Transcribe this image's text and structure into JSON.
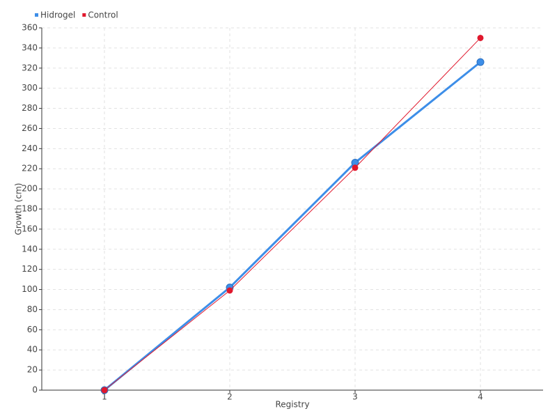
{
  "chart_data": {
    "type": "line",
    "x_label": "Registry",
    "y_label": "Growth (cm)",
    "categories": [
      "1",
      "2",
      "3",
      "4"
    ],
    "series": [
      {
        "name": "Hidrogel",
        "color": "#3d8ee8",
        "values": [
          0,
          102,
          226,
          326
        ]
      },
      {
        "name": "Control",
        "color": "#e0182d",
        "values": [
          0,
          99,
          221,
          350
        ]
      }
    ],
    "ylim": [
      0,
      360
    ],
    "yticks": [
      0,
      20,
      40,
      60,
      80,
      100,
      120,
      140,
      160,
      180,
      200,
      220,
      240,
      260,
      280,
      300,
      320,
      340,
      360
    ],
    "grid": true,
    "legend": "top-left"
  }
}
